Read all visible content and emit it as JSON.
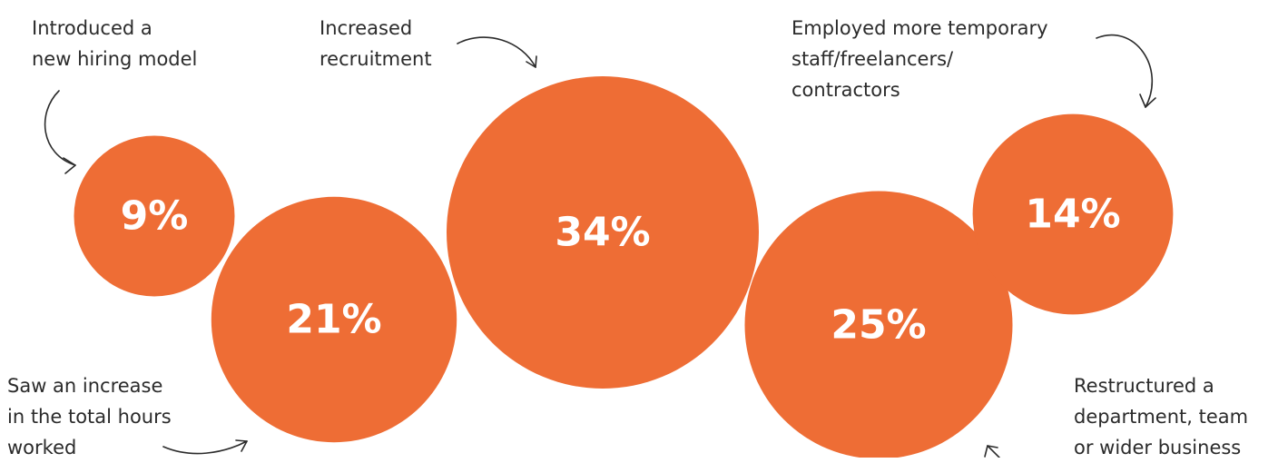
{
  "chart_data": {
    "type": "bubble",
    "unit": "%",
    "points": [
      {
        "label_lines": [
          "Introduced a",
          "new hiring model"
        ],
        "value": 9,
        "display": "9%"
      },
      {
        "label_lines": [
          "Saw an increase",
          "in the total hours",
          "worked"
        ],
        "value": 21,
        "display": "21%"
      },
      {
        "label_lines": [
          "Increased",
          "recruitment"
        ],
        "value": 34,
        "display": "34%"
      },
      {
        "label_lines": [
          "Restructured a",
          "department, team",
          "or wider business"
        ],
        "value": 25,
        "display": "25%"
      },
      {
        "label_lines": [
          "Employed more temporary",
          "staff/freelancers/",
          "contractors"
        ],
        "value": 14,
        "display": "14%"
      }
    ],
    "colors": {
      "bubble": "#EE6D35",
      "value_text": "#FFFFFF",
      "label_text": "#2B2B2B"
    }
  }
}
